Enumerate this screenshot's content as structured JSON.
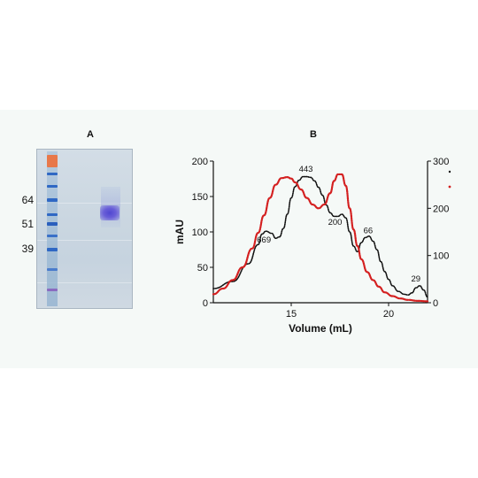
{
  "panels": {
    "a_label": "A",
    "b_label": "B"
  },
  "gel": {
    "marker_labels": [
      "64",
      "51",
      "39"
    ],
    "colors": {
      "ladder_top": "#e8784a",
      "ladder_band": "#2f68c4",
      "sample_band": "#5047d0"
    }
  },
  "chart_data": {
    "type": "line",
    "xlabel": "Volume (mL)",
    "ylabel": "mAU",
    "xlim": [
      11,
      22
    ],
    "x_ticks": [
      15,
      20
    ],
    "ylim": [
      0,
      200
    ],
    "y_ticks": [
      0,
      50,
      100,
      150,
      200
    ],
    "y2lim": [
      0,
      300
    ],
    "y2_ticks": [
      0,
      100,
      200,
      300
    ],
    "grid": false,
    "legend_placement": "top-right",
    "series": [
      {
        "axis": "left",
        "color": "#111111",
        "style": "dotted",
        "x": [
          11.0,
          12.0,
          12.8,
          13.3,
          13.5,
          13.7,
          14.0,
          14.2,
          14.4,
          14.6,
          14.8,
          15.0,
          15.2,
          15.4,
          15.6,
          15.8,
          16.0,
          16.2,
          16.4,
          16.6,
          16.8,
          17.0,
          17.2,
          17.4,
          17.6,
          17.8,
          18.0,
          18.2,
          18.4,
          18.6,
          18.8,
          19.0,
          19.2,
          19.4,
          19.6,
          19.8,
          20.0,
          20.2,
          20.5,
          20.8,
          21.0,
          21.2,
          21.4,
          21.6,
          21.8,
          22.0
        ],
        "y": [
          20,
          30,
          55,
          82,
          97,
          101,
          98,
          91,
          93,
          105,
          125,
          148,
          164,
          173,
          178,
          178,
          177,
          172,
          163,
          152,
          138,
          127,
          122,
          122,
          125,
          120,
          100,
          80,
          72,
          85,
          92,
          94,
          87,
          75,
          58,
          44,
          33,
          24,
          16,
          12,
          11,
          14,
          21,
          24,
          18,
          8
        ]
      },
      {
        "axis": "right",
        "color": "#d42020",
        "style": "dotted",
        "x": [
          11.0,
          11.5,
          12.0,
          12.5,
          13.0,
          13.3,
          13.6,
          13.9,
          14.2,
          14.5,
          14.8,
          15.0,
          15.2,
          15.5,
          15.8,
          16.1,
          16.4,
          16.7,
          17.0,
          17.2,
          17.4,
          17.6,
          17.8,
          18.0,
          18.2,
          18.4,
          18.6,
          18.9,
          19.2,
          19.5,
          19.8,
          20.2,
          20.6,
          21.0,
          21.5,
          22.0
        ],
        "y": [
          18,
          30,
          48,
          75,
          115,
          148,
          185,
          222,
          250,
          264,
          266,
          263,
          255,
          240,
          222,
          208,
          200,
          208,
          232,
          258,
          272,
          272,
          248,
          200,
          155,
          120,
          92,
          65,
          48,
          34,
          22,
          14,
          9,
          6,
          4,
          3
        ]
      }
    ],
    "annotations": [
      {
        "text": "669",
        "x": 13.6,
        "y": 85
      },
      {
        "text": "443",
        "x": 15.75,
        "y": 185
      },
      {
        "text": "200",
        "x": 17.25,
        "y": 110
      },
      {
        "text": "66",
        "x": 18.95,
        "y": 98
      },
      {
        "text": "29",
        "x": 21.4,
        "y": 30
      }
    ]
  }
}
